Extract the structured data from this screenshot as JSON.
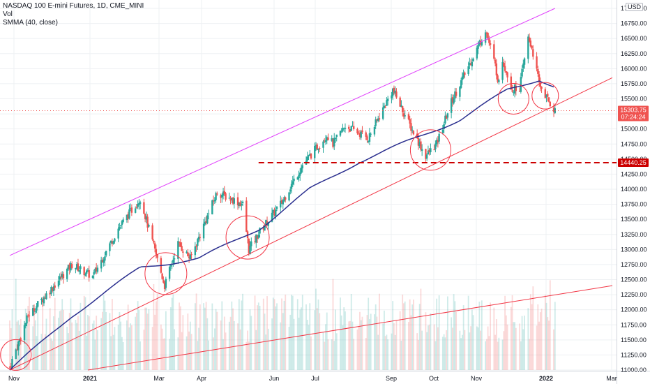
{
  "legend": {
    "title": "NASDAQ 100 E-mini Futures, 1D, CME_MINI",
    "volume": "Vol",
    "smma": "SMMA (40, close)"
  },
  "currency_badge": "USD",
  "price_tags": {
    "last_price": "15303.75",
    "countdown": "07:24:24",
    "support_level": "14440.25"
  },
  "colors": {
    "up": "#26a69a",
    "down": "#ef5350",
    "smma": "#2a2e8e",
    "upper_channel": "#e040fb",
    "lower_channel": "#f23645",
    "support": "#cc0000",
    "grid": "#eef0f3"
  },
  "chart_data": {
    "type": "candlestick",
    "ylim": [
      11000,
      17000
    ],
    "y_ticks": [
      "17000.00",
      "16750.00",
      "16500.00",
      "16250.00",
      "16000.00",
      "15750.00",
      "15500.00",
      "15250.00",
      "15000.00",
      "14750.00",
      "14500.00",
      "14250.00",
      "14000.00",
      "13750.00",
      "13500.00",
      "13250.00",
      "13000.00",
      "12750.00",
      "12500.00",
      "12250.00",
      "12000.00",
      "11750.00",
      "11500.00",
      "11250.00",
      "11000.00"
    ],
    "x_ticks": [
      "Nov",
      "2021",
      "Mar",
      "Apr",
      "Jun",
      "Jul",
      "Sep",
      "Oct",
      "Nov",
      "2022",
      "Mar"
    ],
    "anchors": [
      {
        "date": "2020-10-28",
        "value": 11050
      },
      {
        "date": "2020-11-12",
        "value": 11900
      },
      {
        "date": "2020-12-18",
        "value": 12750
      },
      {
        "date": "2021-01-04",
        "value": 12550
      },
      {
        "date": "2021-01-25",
        "value": 13350
      },
      {
        "date": "2021-02-12",
        "value": 13850
      },
      {
        "date": "2021-03-04",
        "value": 12400
      },
      {
        "date": "2021-03-15",
        "value": 13100
      },
      {
        "date": "2021-03-25",
        "value": 12850
      },
      {
        "date": "2021-04-16",
        "value": 13950
      },
      {
        "date": "2021-05-07",
        "value": 13750
      },
      {
        "date": "2021-05-12",
        "value": 13000
      },
      {
        "date": "2021-05-21",
        "value": 13300
      },
      {
        "date": "2021-06-07",
        "value": 13750
      },
      {
        "date": "2021-06-25",
        "value": 14400
      },
      {
        "date": "2021-07-15",
        "value": 14900
      },
      {
        "date": "2021-07-20",
        "value": 14750
      },
      {
        "date": "2021-07-30",
        "value": 15050
      },
      {
        "date": "2021-08-18",
        "value": 14850
      },
      {
        "date": "2021-09-07",
        "value": 15650
      },
      {
        "date": "2021-09-20",
        "value": 15100
      },
      {
        "date": "2021-10-04",
        "value": 14550
      },
      {
        "date": "2021-10-13",
        "value": 14750
      },
      {
        "date": "2021-10-25",
        "value": 15450
      },
      {
        "date": "2021-11-19",
        "value": 16500
      },
      {
        "date": "2021-11-22",
        "value": 16650
      },
      {
        "date": "2021-11-30",
        "value": 16050
      },
      {
        "date": "2021-12-03",
        "value": 15750
      },
      {
        "date": "2021-12-06",
        "value": 16150
      },
      {
        "date": "2021-12-14",
        "value": 15650
      },
      {
        "date": "2021-12-20",
        "value": 15700
      },
      {
        "date": "2021-12-27",
        "value": 16500
      },
      {
        "date": "2021-12-30",
        "value": 16350
      },
      {
        "date": "2022-01-05",
        "value": 15750
      },
      {
        "date": "2022-01-13",
        "value": 15450
      },
      {
        "date": "2022-01-18",
        "value": 15300
      }
    ],
    "smma_anchors": [
      {
        "date": "2020-10-28",
        "value": 11000
      },
      {
        "date": "2020-12-18",
        "value": 11900
      },
      {
        "date": "2021-02-12",
        "value": 12700
      },
      {
        "date": "2021-04-01",
        "value": 12850
      },
      {
        "date": "2021-05-21",
        "value": 13350
      },
      {
        "date": "2021-07-01",
        "value": 14000
      },
      {
        "date": "2021-08-10",
        "value": 14450
      },
      {
        "date": "2021-09-20",
        "value": 14800
      },
      {
        "date": "2021-11-01",
        "value": 15150
      },
      {
        "date": "2021-12-10",
        "value": 15650
      },
      {
        "date": "2022-01-05",
        "value": 15820
      },
      {
        "date": "2022-01-18",
        "value": 15700
      }
    ],
    "upper_channel": [
      {
        "date": "2020-10-28",
        "value": 12900
      },
      {
        "date": "2022-01-18",
        "value": 17000
      }
    ],
    "lower_channel": [
      {
        "date": "2020-10-28",
        "value": 11000
      },
      {
        "date": "2022-03-06",
        "value": 15850
      }
    ],
    "long_trendline": [
      {
        "date": "2020-12-31",
        "value": 11000
      },
      {
        "date": "2022-03-06",
        "value": 12400
      }
    ],
    "support_line": {
      "value": 14440.25,
      "from": "2021-05-20"
    },
    "circles": [
      {
        "date": "2020-11-02",
        "value": 11250
      },
      {
        "date": "2021-03-05",
        "value": 12600
      },
      {
        "date": "2021-05-11",
        "value": 13200
      },
      {
        "date": "2021-10-08",
        "value": 14650
      },
      {
        "date": "2021-12-15",
        "value": 15500
      },
      {
        "date": "2022-01-10",
        "value": 15550
      }
    ],
    "last_price": 15303.75
  }
}
